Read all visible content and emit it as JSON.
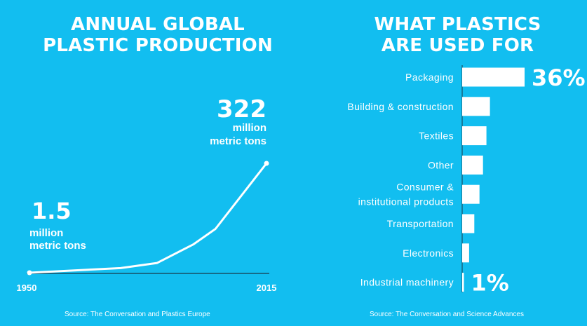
{
  "left_panel": {
    "title_line1": "ANNUAL GLOBAL",
    "title_line2": "PLASTIC PRODUCTION",
    "source": "Source: The Conversation and Plastics Europe"
  },
  "right_panel": {
    "title_line1": "WHAT PLASTICS",
    "title_line2": "ARE USED FOR",
    "source": "Source: The Conversation and Science Advances"
  },
  "colors": {
    "background": "#12BEF0",
    "foreground": "#FFFFFF",
    "axis": "#1A3A4A"
  },
  "chart_data": [
    {
      "type": "line",
      "title": "ANNUAL GLOBAL PLASTIC PRODUCTION",
      "x_tick_labels": [
        "1950",
        "2015"
      ],
      "xlim": [
        1950,
        2015
      ],
      "unit": "million metric tons",
      "series": [
        {
          "x": [
            1950,
            1975,
            1985,
            1995,
            2001,
            2015
          ],
          "y": [
            1.5,
            15,
            30,
            85,
            130,
            322
          ]
        }
      ],
      "annotations": [
        {
          "number": "1.5",
          "line1": "million",
          "line2": "metric tons"
        },
        {
          "number": "322",
          "line1": "million",
          "line2": "metric tons"
        }
      ],
      "grid": false,
      "legend": "none"
    },
    {
      "type": "bar",
      "orientation": "horizontal",
      "title": "WHAT PLASTICS ARE USED FOR",
      "categories": [
        [
          "Packaging"
        ],
        [
          "Building & construction"
        ],
        [
          "Textiles"
        ],
        [
          "Other"
        ],
        [
          "Consumer &",
          "institutional products"
        ],
        [
          "Transportation"
        ],
        [
          "Electronics"
        ],
        [
          "Industrial machinery"
        ]
      ],
      "values": [
        36,
        16,
        14,
        12,
        10,
        7,
        4,
        1
      ],
      "value_labels": [
        "36%",
        "",
        "",
        "",
        "",
        "",
        "",
        "1%"
      ],
      "xlim": [
        0,
        36
      ],
      "grid": false,
      "legend": "none"
    }
  ]
}
